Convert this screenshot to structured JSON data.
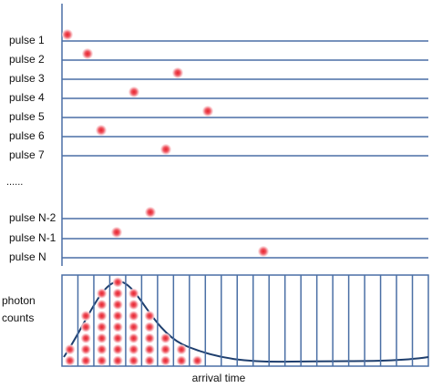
{
  "pulses": [
    "pulse 1",
    "pulse 2",
    "pulse 3",
    "pulse 4",
    "pulse 5",
    "pulse 6",
    "pulse 7",
    "pulse N-2",
    "pulse N-1",
    "pulse N"
  ],
  "ellipsis": "......",
  "histogram": {
    "y_label": [
      "photon",
      "counts"
    ],
    "x_label": "arrival time"
  }
}
